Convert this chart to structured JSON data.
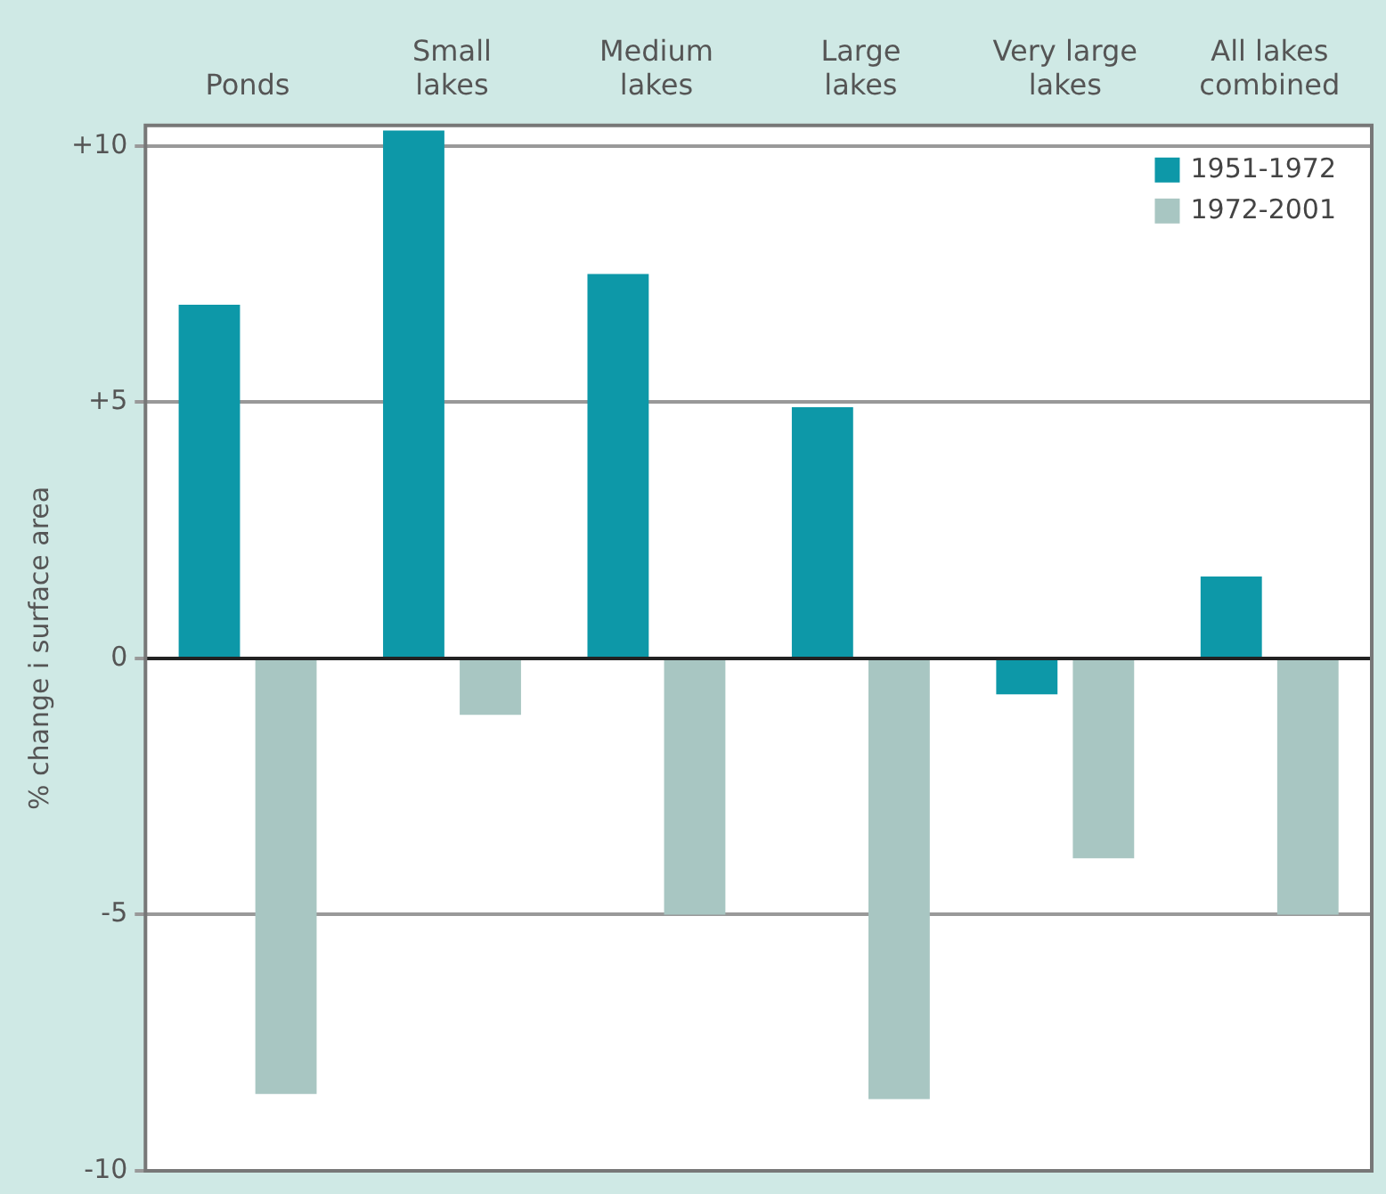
{
  "chart_data": {
    "type": "bar",
    "categories": [
      "Ponds",
      "Small lakes",
      "Medium lakes",
      "Large lakes",
      "Very large lakes",
      "All lakes combined"
    ],
    "series": [
      {
        "name": "1951-1972",
        "color": "#0d98a8",
        "values": [
          6.9,
          10.3,
          7.5,
          4.9,
          -0.7,
          1.6
        ]
      },
      {
        "name": "1972-2001",
        "color": "#a8c6c2",
        "values": [
          -8.5,
          -1.1,
          -5.0,
          -8.6,
          -3.9,
          -5.0
        ]
      }
    ],
    "ylabel": "% change i surface area",
    "ylim": [
      -10,
      10.4
    ],
    "yticks": [
      {
        "value": -10,
        "label": "-10"
      },
      {
        "value": -5,
        "label": "-5"
      },
      0,
      {
        "value": 5,
        "label": "+5"
      },
      {
        "value": 10,
        "label": "+10"
      }
    ],
    "grid": "y",
    "legend": "top right"
  }
}
